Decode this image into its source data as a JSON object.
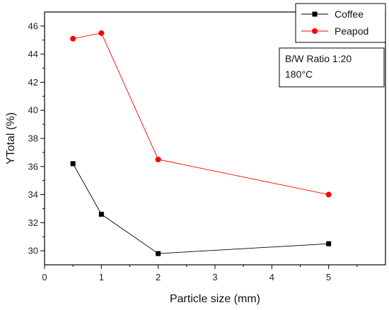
{
  "chart_data": {
    "type": "line",
    "title": "",
    "xlabel": "Particle size (mm)",
    "ylabel": "YTotal (%)",
    "xlim": [
      0,
      6
    ],
    "ylim": [
      29,
      47
    ],
    "x_ticks": [
      0,
      1,
      2,
      3,
      4,
      5
    ],
    "y_ticks": [
      30,
      32,
      34,
      36,
      38,
      40,
      42,
      44,
      46
    ],
    "legend_position": "top-right",
    "series": [
      {
        "name": "Coffee",
        "color": "#000000",
        "marker": "square",
        "x": [
          0.5,
          1,
          2,
          5
        ],
        "y": [
          36.2,
          32.6,
          29.8,
          30.5
        ]
      },
      {
        "name": "Peapod",
        "color": "#ff0000",
        "marker": "circle",
        "x": [
          0.5,
          1,
          2,
          5
        ],
        "y": [
          45.1,
          45.5,
          36.5,
          34.0
        ]
      }
    ],
    "annotation": [
      "B/W Ratio 1:20",
      "180°C"
    ]
  }
}
